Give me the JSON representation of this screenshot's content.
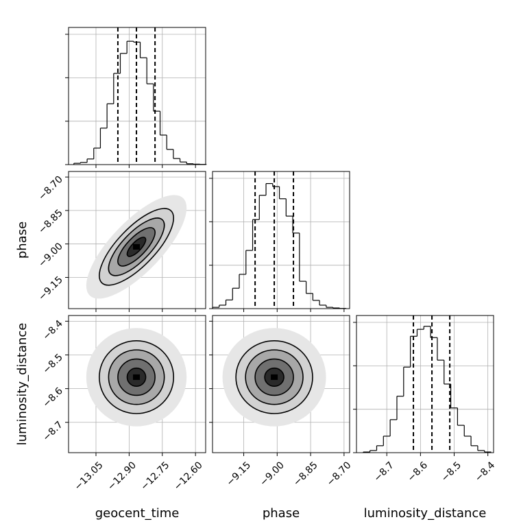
{
  "chart_data": {
    "type": "corner",
    "parameters": [
      "geocent_time",
      "phase",
      "luminosity_distance"
    ],
    "axes": [
      {
        "lim": [
          -13.174,
          -12.554
        ],
        "ticks": [
          {
            "value": -13.05,
            "label": "−13.05"
          },
          {
            "value": -12.9,
            "label": "−12.90"
          },
          {
            "value": -12.75,
            "label": "−12.75"
          },
          {
            "value": -12.6,
            "label": "−12.60"
          }
        ]
      },
      {
        "lim": [
          -9.29,
          -8.675
        ],
        "ticks": [
          {
            "value": -9.15,
            "label": "−9.15"
          },
          {
            "value": -9.0,
            "label": "−9.00"
          },
          {
            "value": -8.85,
            "label": "−8.85"
          },
          {
            "value": -8.7,
            "label": "−8.70"
          }
        ]
      },
      {
        "lim": [
          -8.79,
          -8.383
        ],
        "ticks": [
          {
            "value": -8.7,
            "label": "−8.7"
          },
          {
            "value": -8.6,
            "label": "−8.6"
          },
          {
            "value": -8.5,
            "label": "−8.5"
          },
          {
            "value": -8.4,
            "label": "−8.4"
          }
        ]
      }
    ],
    "hist_ylim": [
      0,
      3158
    ],
    "hist_yticks": [
      0,
      1000,
      2000,
      3000
    ],
    "histograms": [
      {
        "bins": [
          -13.15,
          -13.12,
          -13.09,
          -13.06,
          -13.03,
          -13.0,
          -12.97,
          -12.94,
          -12.91,
          -12.88,
          -12.85,
          -12.82,
          -12.79,
          -12.76,
          -12.73,
          -12.7,
          -12.67,
          -12.64,
          -12.61,
          -12.58,
          -12.55
        ],
        "counts": [
          30,
          50,
          130,
          380,
          840,
          1400,
          2100,
          2560,
          2840,
          2820,
          2460,
          1860,
          1230,
          680,
          350,
          140,
          60,
          20,
          10,
          5
        ],
        "quantiles": [
          -12.951,
          -12.867,
          -12.783
        ]
      },
      {
        "bins": [
          -9.29,
          -9.26,
          -9.23,
          -9.2,
          -9.17,
          -9.14,
          -9.11,
          -9.08,
          -9.05,
          -9.02,
          -8.99,
          -8.96,
          -8.93,
          -8.9,
          -8.87,
          -8.84,
          -8.81,
          -8.78,
          -8.75,
          -8.72,
          -8.69
        ],
        "counts": [
          30,
          80,
          200,
          470,
          790,
          1340,
          2050,
          2610,
          2880,
          2810,
          2530,
          2130,
          1740,
          630,
          350,
          190,
          80,
          30,
          15,
          5
        ],
        "quantiles": [
          -9.099,
          -9.013,
          -8.927
        ]
      },
      {
        "bins": [
          -8.77,
          -8.75,
          -8.73,
          -8.71,
          -8.69,
          -8.67,
          -8.65,
          -8.63,
          -8.61,
          -8.59,
          -8.57,
          -8.55,
          -8.53,
          -8.51,
          -8.49,
          -8.47,
          -8.45,
          -8.43,
          -8.41,
          -8.39
        ],
        "counts": [
          15,
          50,
          160,
          380,
          760,
          1300,
          1970,
          2680,
          2840,
          2910,
          2650,
          2130,
          1580,
          1030,
          630,
          380,
          160,
          50,
          15
        ],
        "quantiles": [
          -8.621,
          -8.566,
          -8.513
        ]
      }
    ],
    "pairs": [
      {
        "corr": 0.75
      },
      {
        "corr": 0.0
      },
      {
        "corr": 0.0
      }
    ],
    "levels": [
      0.5,
      1,
      1.5,
      2
    ],
    "color": "#000000",
    "grid": true
  }
}
